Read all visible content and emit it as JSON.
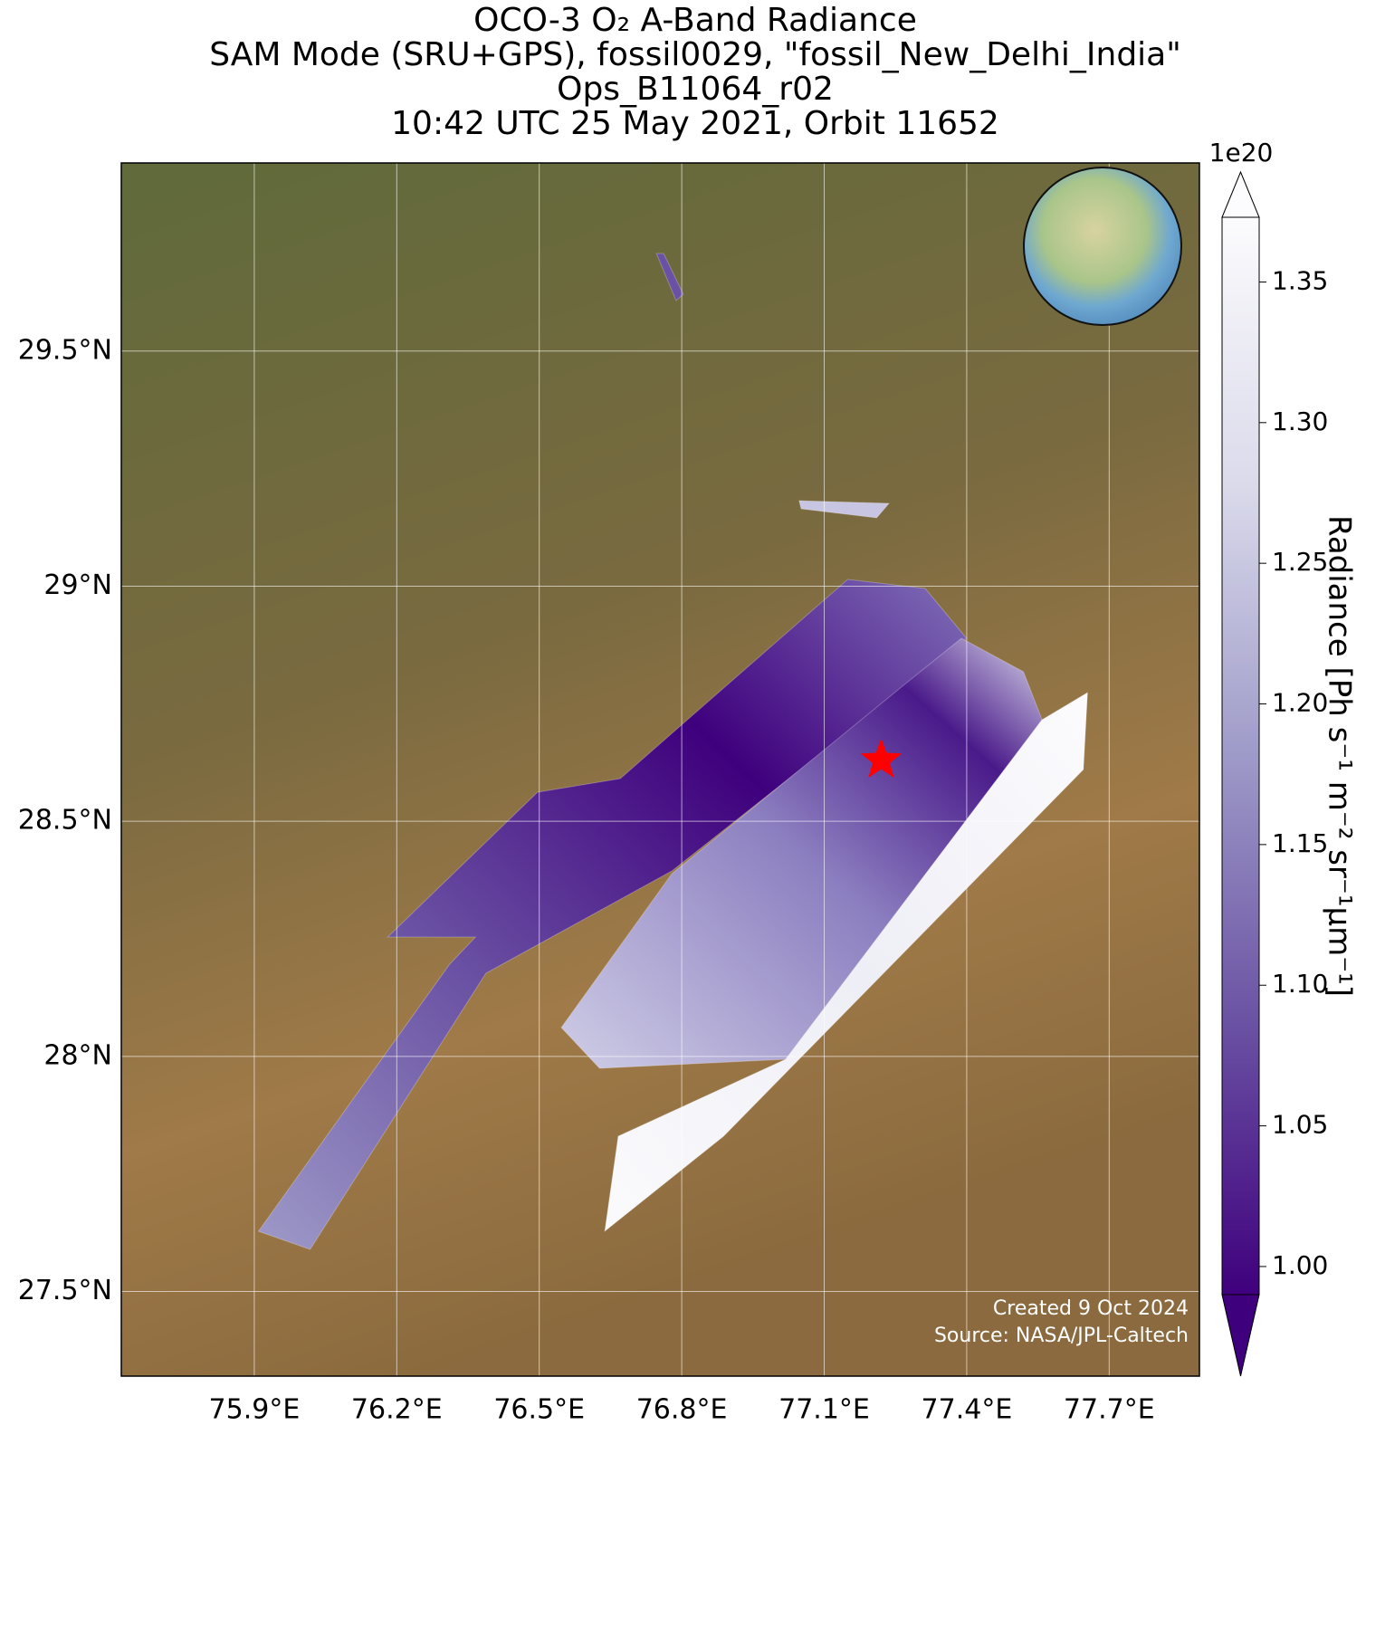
{
  "chart_data": {
    "type": "map",
    "title": [
      "OCO-3 O₂ A-Band Radiance",
      "SAM Mode (SRU+GPS), fossil0029, \"fossil_New_Delhi_India\"",
      "Ops_B11064_r02",
      "10:42 UTC 25 May 2021, Orbit 11652"
    ],
    "xlim": [
      75.62,
      77.89
    ],
    "ylim": [
      27.32,
      29.9
    ],
    "xticks": [
      {
        "value": 75.9,
        "label": "75.9°E"
      },
      {
        "value": 76.2,
        "label": "76.2°E"
      },
      {
        "value": 76.5,
        "label": "76.5°E"
      },
      {
        "value": 76.8,
        "label": "76.8°E"
      },
      {
        "value": 77.1,
        "label": "77.1°E"
      },
      {
        "value": 77.4,
        "label": "77.4°E"
      },
      {
        "value": 77.7,
        "label": "77.7°E"
      }
    ],
    "yticks": [
      {
        "value": 27.5,
        "label": "27.5°N"
      },
      {
        "value": 28,
        "label": "28°N"
      },
      {
        "value": 28.5,
        "label": "28.5°N"
      },
      {
        "value": 29,
        "label": "29°N"
      },
      {
        "value": 29.5,
        "label": "29.5°N"
      }
    ],
    "grid": true,
    "target": {
      "lon": 77.22,
      "lat": 28.63,
      "color": "#ff0000"
    },
    "colorbar": {
      "label": "Radiance [Ph s⁻¹ m⁻² sr⁻¹μm⁻¹]",
      "offset": "1e20",
      "clim": [
        0.99,
        1.373
      ],
      "ticks": [
        {
          "value": 1.0,
          "label": "1.00"
        },
        1.05,
        {
          "value": 1.1,
          "label": "1.10"
        },
        1.15,
        {
          "value": 1.2,
          "label": "1.20"
        },
        1.25,
        {
          "value": 1.3,
          "label": "1.30"
        },
        1.35
      ],
      "colors": [
        "#3f007d",
        "#6a51a3",
        "#9e9ac8",
        "#dadaeb",
        "#fcfbfd"
      ]
    },
    "credits": [
      "Created 9 Oct 2024",
      "Source: NASA/JPL-Caltech"
    ]
  }
}
